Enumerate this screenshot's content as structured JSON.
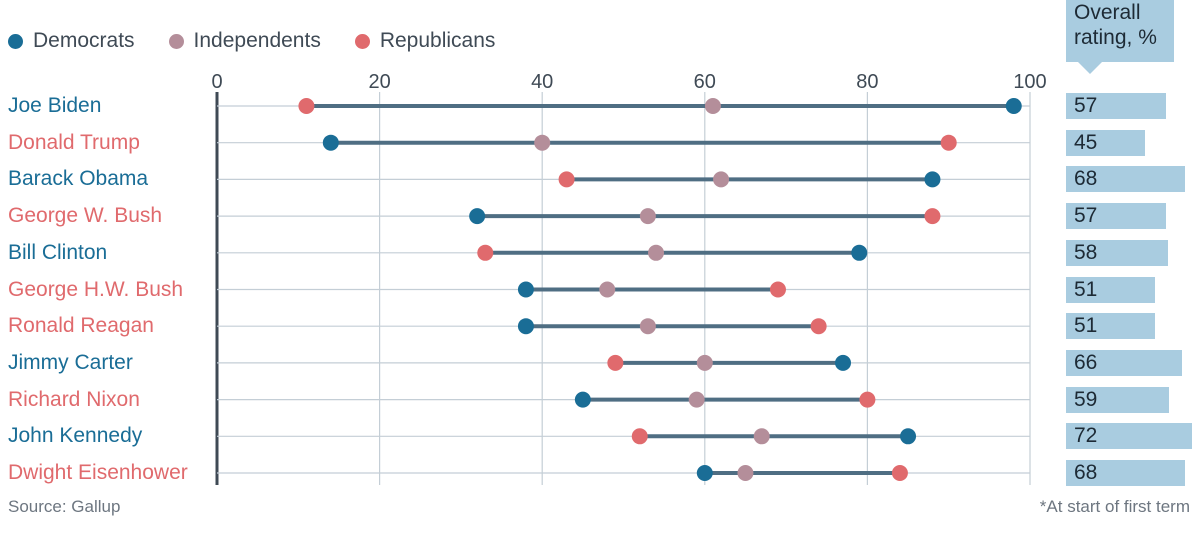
{
  "legend": {
    "democrats": "Democrats",
    "independents": "Independents",
    "republicans": "Republicans"
  },
  "rating_header": {
    "line1": "Overall",
    "line2": "rating, %"
  },
  "source": "Source: Gallup",
  "footnote": "*At start of first term",
  "colors": {
    "democrats": "#1a6d96",
    "independents": "#b48e9a",
    "republicans": "#e06a6d",
    "connector": "#4f6e83",
    "rating_bar": "#a9cce0",
    "grid": "#c4ced6",
    "axis": "#3f4a55"
  },
  "chart_data": {
    "type": "dot-range",
    "xlim": [
      0,
      100
    ],
    "x_ticks": [
      "0",
      "20",
      "40",
      "60",
      "80",
      "100"
    ],
    "series_names": [
      "Democrats",
      "Independents",
      "Republicans"
    ],
    "rows": [
      {
        "name": "Joe Biden",
        "party": "D",
        "democrats": 98,
        "independents": 61,
        "republicans": 11,
        "overall": "57"
      },
      {
        "name": "Donald Trump",
        "party": "R",
        "democrats": 14,
        "independents": 40,
        "republicans": 90,
        "overall": "45"
      },
      {
        "name": "Barack Obama",
        "party": "D",
        "democrats": 88,
        "independents": 62,
        "republicans": 43,
        "overall": "68"
      },
      {
        "name": "George W. Bush",
        "party": "R",
        "democrats": 32,
        "independents": 53,
        "republicans": 88,
        "overall": "57"
      },
      {
        "name": "Bill Clinton",
        "party": "D",
        "democrats": 79,
        "independents": 54,
        "republicans": 33,
        "overall": "58"
      },
      {
        "name": "George H.W. Bush",
        "party": "R",
        "democrats": 38,
        "independents": 48,
        "republicans": 69,
        "overall": "51"
      },
      {
        "name": "Ronald Reagan",
        "party": "R",
        "democrats": 38,
        "independents": 53,
        "republicans": 74,
        "overall": "51"
      },
      {
        "name": "Jimmy Carter",
        "party": "D",
        "democrats": 77,
        "independents": 60,
        "republicans": 49,
        "overall": "66"
      },
      {
        "name": "Richard Nixon",
        "party": "R",
        "democrats": 45,
        "independents": 59,
        "republicans": 80,
        "overall": "59"
      },
      {
        "name": "John Kennedy",
        "party": "D",
        "democrats": 85,
        "independents": 67,
        "republicans": 52,
        "overall": "72"
      },
      {
        "name": "Dwight Eisenhower",
        "party": "R",
        "democrats": 60,
        "independents": 65,
        "republicans": 84,
        "overall": "68"
      }
    ]
  }
}
